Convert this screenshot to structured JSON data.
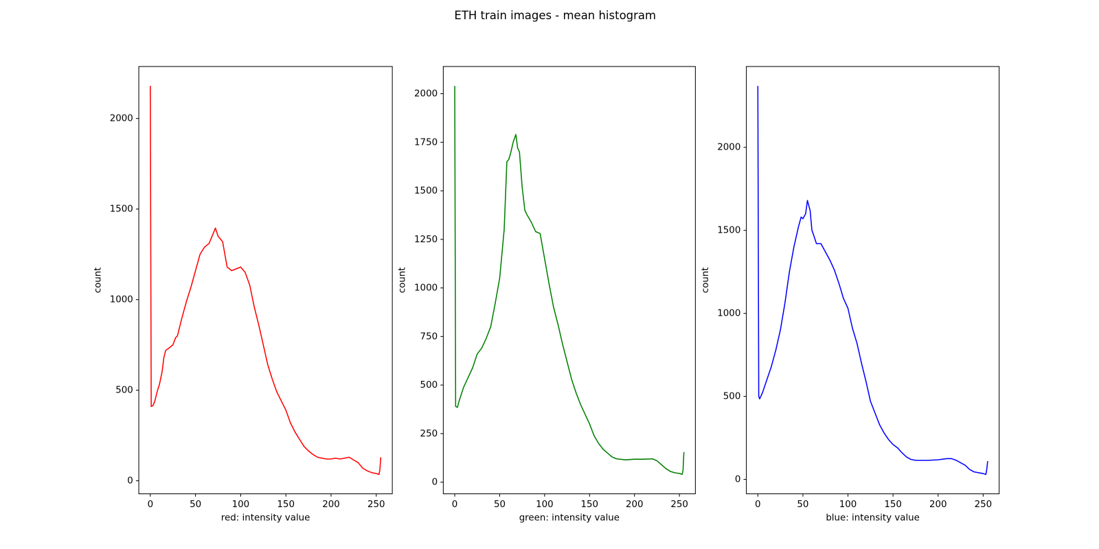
{
  "title": "ETH train images - mean histogram",
  "chart_data": [
    {
      "type": "line",
      "x_label": "red: intensity value",
      "y_label": "count",
      "color": "#ff0000",
      "xlim": [
        -12.75,
        267.75
      ],
      "ylim": [
        -72,
        2287
      ],
      "xticks": [
        0,
        50,
        100,
        150,
        200,
        250
      ],
      "yticks": [
        0,
        500,
        1000,
        1500,
        2000
      ],
      "x": [
        0,
        1,
        3,
        5,
        8,
        10,
        13,
        15,
        17,
        20,
        25,
        28,
        30,
        35,
        40,
        45,
        50,
        55,
        60,
        65,
        70,
        72,
        75,
        80,
        85,
        90,
        95,
        100,
        105,
        110,
        115,
        120,
        125,
        130,
        135,
        140,
        145,
        150,
        155,
        160,
        165,
        170,
        175,
        180,
        185,
        190,
        195,
        200,
        205,
        210,
        215,
        220,
        225,
        230,
        235,
        240,
        245,
        250,
        253,
        254,
        255
      ],
      "values": [
        2180,
        410,
        415,
        440,
        500,
        530,
        600,
        680,
        720,
        730,
        750,
        790,
        800,
        900,
        990,
        1070,
        1160,
        1250,
        1290,
        1310,
        1370,
        1395,
        1350,
        1320,
        1180,
        1160,
        1170,
        1180,
        1150,
        1080,
        960,
        860,
        750,
        640,
        560,
        490,
        440,
        390,
        320,
        270,
        230,
        190,
        165,
        145,
        130,
        125,
        120,
        120,
        125,
        120,
        125,
        130,
        115,
        100,
        70,
        55,
        45,
        40,
        35,
        60,
        130
      ]
    },
    {
      "type": "line",
      "x_label": "green: intensity value",
      "y_label": "count",
      "color": "#008000",
      "xlim": [
        -12.75,
        267.75
      ],
      "ylim": [
        -60,
        2140
      ],
      "xticks": [
        0,
        50,
        100,
        150,
        200,
        250
      ],
      "yticks": [
        0,
        250,
        500,
        750,
        1000,
        1250,
        1500,
        1750,
        2000
      ],
      "x": [
        0,
        1,
        3,
        5,
        10,
        15,
        20,
        25,
        30,
        35,
        40,
        45,
        50,
        55,
        58,
        60,
        62,
        65,
        68,
        70,
        72,
        75,
        78,
        80,
        85,
        90,
        95,
        100,
        105,
        110,
        115,
        120,
        125,
        130,
        135,
        140,
        145,
        150,
        155,
        160,
        165,
        170,
        175,
        180,
        190,
        200,
        210,
        220,
        225,
        230,
        235,
        240,
        245,
        250,
        253,
        254,
        255
      ],
      "values": [
        2040,
        390,
        385,
        420,
        490,
        540,
        590,
        660,
        690,
        740,
        800,
        920,
        1050,
        1300,
        1650,
        1660,
        1690,
        1750,
        1790,
        1720,
        1700,
        1520,
        1400,
        1380,
        1340,
        1290,
        1280,
        1150,
        1020,
        900,
        810,
        710,
        620,
        530,
        460,
        400,
        350,
        300,
        240,
        200,
        170,
        150,
        130,
        120,
        115,
        118,
        118,
        120,
        110,
        90,
        70,
        55,
        48,
        45,
        40,
        60,
        155
      ]
    },
    {
      "type": "line",
      "x_label": "blue: intensity value",
      "y_label": "count",
      "color": "#0000ff",
      "xlim": [
        -12.75,
        267.75
      ],
      "ylim": [
        -87,
        2487
      ],
      "xticks": [
        0,
        50,
        100,
        150,
        200,
        250
      ],
      "yticks": [
        0,
        500,
        1000,
        1500,
        2000
      ],
      "x": [
        0,
        1,
        2,
        5,
        10,
        15,
        20,
        25,
        30,
        35,
        40,
        45,
        48,
        50,
        53,
        55,
        58,
        60,
        62,
        65,
        70,
        75,
        80,
        85,
        90,
        95,
        100,
        105,
        110,
        115,
        120,
        125,
        130,
        135,
        140,
        145,
        150,
        155,
        160,
        165,
        170,
        175,
        180,
        190,
        200,
        210,
        215,
        220,
        225,
        230,
        235,
        240,
        245,
        250,
        253,
        254,
        255
      ],
      "values": [
        2370,
        500,
        485,
        520,
        600,
        680,
        780,
        900,
        1060,
        1250,
        1400,
        1520,
        1580,
        1570,
        1600,
        1680,
        1620,
        1500,
        1470,
        1420,
        1420,
        1370,
        1320,
        1260,
        1180,
        1090,
        1030,
        910,
        820,
        700,
        590,
        470,
        400,
        330,
        280,
        240,
        210,
        190,
        160,
        135,
        120,
        115,
        115,
        115,
        118,
        125,
        125,
        115,
        100,
        85,
        60,
        45,
        40,
        35,
        30,
        60,
        110
      ]
    }
  ]
}
